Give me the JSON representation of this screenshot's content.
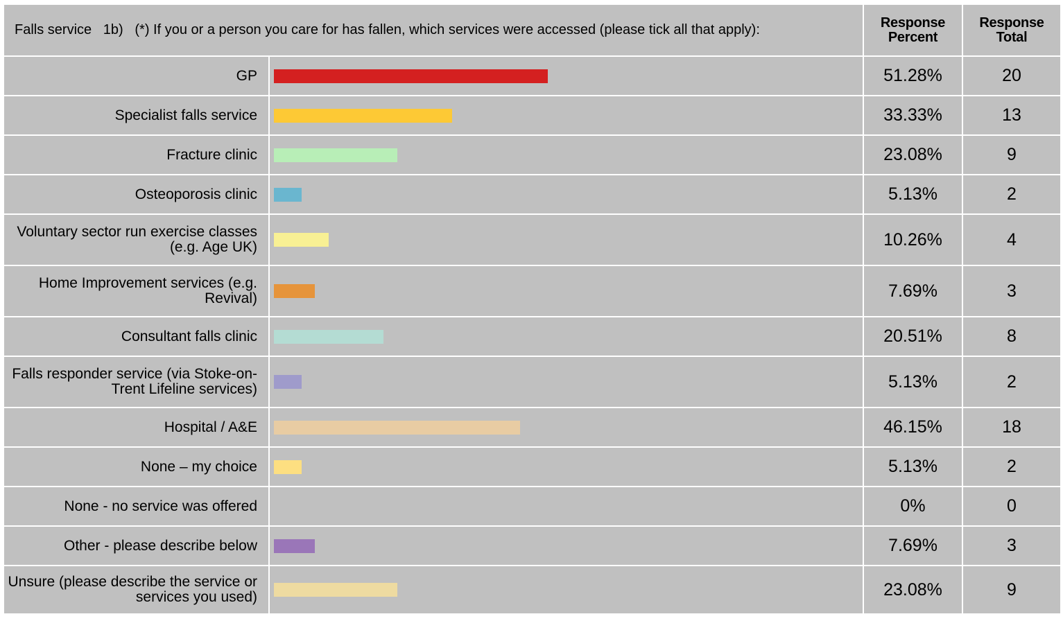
{
  "header": {
    "question": "Falls service   1b)   (*) If you or a person you care for has fallen, which services were accessed (please tick all that apply):",
    "percent_line1": "Response",
    "percent_line2": "Percent",
    "total_line1": "Response",
    "total_line2": "Total"
  },
  "chart_data": {
    "type": "bar",
    "orientation": "horizontal",
    "title": "Falls service   1b)   (*) If you or a person you care for has fallen, which services were accessed (please tick all that apply):",
    "xlim": [
      0,
      100
    ],
    "categories": [
      "GP",
      "Specialist falls service",
      "Fracture clinic",
      "Osteoporosis clinic",
      "Voluntary sector run exercise classes (e.g. Age UK)",
      "Home Improvement services (e.g. Revival)",
      "Consultant falls clinic",
      "Falls responder service (via Stoke-on-Trent Lifeline services)",
      "Hospital / A&E",
      "None – my choice",
      "None - no service was offered",
      "Other - please describe below",
      "Unsure (please describe the service or services you used)"
    ],
    "values": [
      51.28,
      33.33,
      23.08,
      5.13,
      10.26,
      7.69,
      20.51,
      5.13,
      46.15,
      5.13,
      0,
      7.69,
      23.08
    ],
    "percent_labels": [
      "51.28%",
      "33.33%",
      "23.08%",
      "5.13%",
      "10.26%",
      "7.69%",
      "20.51%",
      "5.13%",
      "46.15%",
      "5.13%",
      "0%",
      "7.69%",
      "23.08%"
    ],
    "totals": [
      "20",
      "13",
      "9",
      "2",
      "4",
      "3",
      "8",
      "2",
      "18",
      "2",
      "0",
      "3",
      "9"
    ],
    "colors": [
      "#d42020",
      "#fdc935",
      "#b8eeb7",
      "#6ab6cf",
      "#f8f094",
      "#e6943b",
      "#b4dcd3",
      "#9f9bcb",
      "#e8cca3",
      "#fddf81",
      "#c0c0c0",
      "#9a76b8",
      "#eedba1"
    ]
  }
}
